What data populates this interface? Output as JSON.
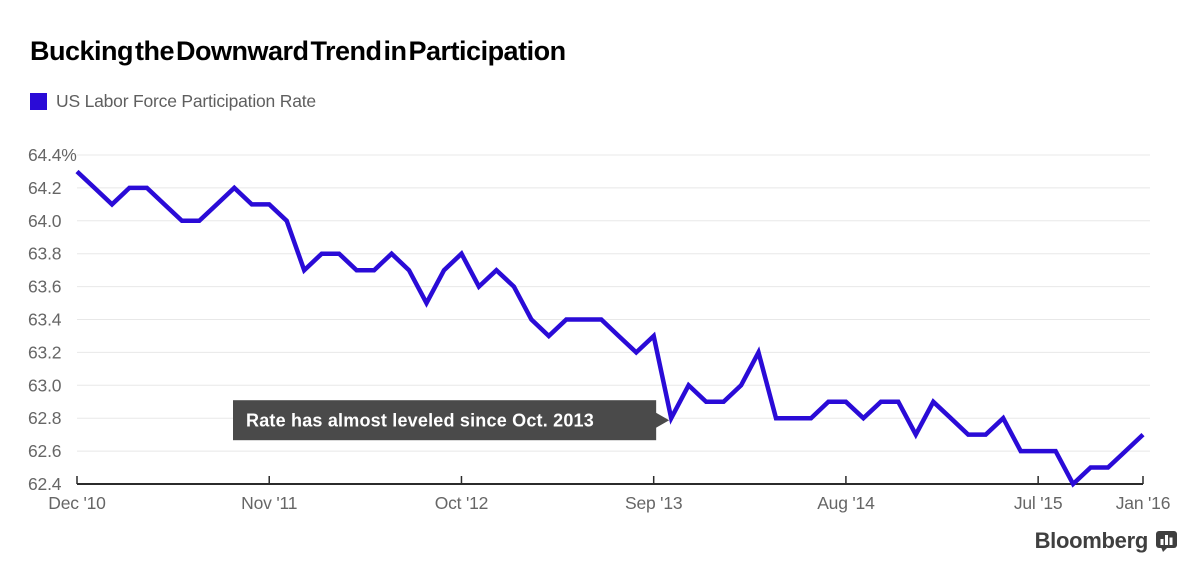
{
  "title": "Bucking the Downward Trend in Participation",
  "legend": {
    "label": "US Labor Force Participation Rate",
    "swatch_color": "#2a0bd7"
  },
  "annotation": {
    "text": "Rate has almost leveled since Oct. 2013",
    "bg_color": "#4a4a4a",
    "text_color": "#ffffff",
    "points_to": {
      "month": "2013-10",
      "value": 62.8,
      "month_index": 34
    }
  },
  "footer": {
    "brand": "Bloomberg",
    "icon": "bloomberg-chart-bubble-icon",
    "color": "#3f3f3f"
  },
  "chart_data": {
    "type": "line",
    "title": "Bucking the Downward Trend in Participation",
    "x": {
      "start": "2010-12",
      "end": "2016-01",
      "freq": "monthly"
    },
    "series": [
      {
        "name": "US Labor Force Participation Rate",
        "color": "#2a0bd7",
        "values": [
          64.3,
          64.2,
          64.1,
          64.2,
          64.2,
          64.1,
          64.0,
          64.0,
          64.1,
          64.2,
          64.1,
          64.1,
          64.0,
          63.7,
          63.8,
          63.8,
          63.7,
          63.7,
          63.8,
          63.7,
          63.5,
          63.7,
          63.8,
          63.6,
          63.7,
          63.6,
          63.4,
          63.3,
          63.4,
          63.4,
          63.4,
          63.3,
          63.2,
          63.3,
          62.8,
          63.0,
          62.9,
          62.9,
          63.0,
          63.2,
          62.8,
          62.8,
          62.8,
          62.9,
          62.9,
          62.8,
          62.9,
          62.9,
          62.7,
          62.9,
          62.8,
          62.7,
          62.7,
          62.8,
          62.6,
          62.6,
          62.6,
          62.4,
          62.5,
          62.5,
          62.6,
          62.7
        ]
      }
    ],
    "ylim": [
      62.4,
      64.4
    ],
    "y_ticks": [
      64.4,
      64.2,
      64.0,
      63.8,
      63.6,
      63.4,
      63.2,
      63.0,
      62.8,
      62.6,
      62.4
    ],
    "y_tick_labels": [
      "64.4%",
      "64.2",
      "64.0",
      "63.8",
      "63.6",
      "63.4",
      "63.2",
      "63.0",
      "62.8",
      "62.6",
      "62.4"
    ],
    "x_tick_labels": [
      "Dec '10",
      "Nov '11",
      "Oct '12",
      "Sep '13",
      "Aug '14",
      "Jul '15",
      "Jan '16"
    ],
    "x_tick_month_index": [
      0,
      11,
      22,
      33,
      44,
      55,
      61
    ],
    "grid": "horizontal-only",
    "legend_position": "top-left",
    "gridline_color": "#e8e8e8",
    "axis_color": "#2b2b2b",
    "label_color": "#666666"
  }
}
